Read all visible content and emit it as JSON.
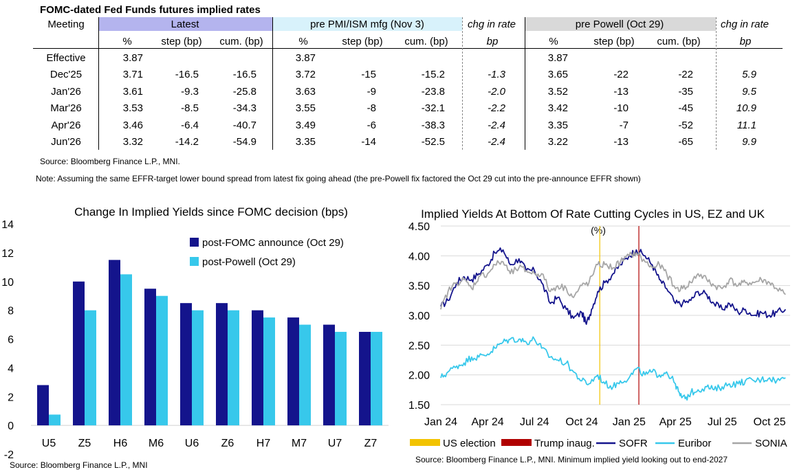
{
  "table": {
    "title": "FOMC-dated Fed Funds futures implied rates",
    "meeting_header": "Meeting",
    "groups": [
      {
        "label": "Latest",
        "sub": [
          "%",
          "step (bp)",
          "cum. (bp)"
        ]
      },
      {
        "label": "pre PMI/ISM mfg (Nov 3)",
        "sub": [
          "%",
          "step (bp)",
          "cum. (bp)"
        ]
      },
      {
        "label": "chg in rate",
        "sub": [
          "bp"
        ]
      },
      {
        "label": "pre Powell (Oct 29)",
        "sub": [
          "%",
          "step (bp)",
          "cum. (bp)"
        ]
      },
      {
        "label": "chg in rate",
        "sub": [
          "bp"
        ]
      }
    ],
    "rows": [
      [
        "Effective",
        "3.87",
        "",
        "",
        "3.87",
        "",
        "",
        "",
        "3.87",
        "",
        "",
        ""
      ],
      [
        "Dec'25",
        "3.71",
        "-16.5",
        "-16.5",
        "3.72",
        "-15",
        "-15.2",
        "-1.3",
        "3.65",
        "-22",
        "-22",
        "5.9"
      ],
      [
        "Jan'26",
        "3.61",
        "-9.3",
        "-25.8",
        "3.63",
        "-9",
        "-23.8",
        "-2.0",
        "3.52",
        "-13",
        "-35",
        "9.5"
      ],
      [
        "Mar'26",
        "3.53",
        "-8.5",
        "-34.3",
        "3.55",
        "-8",
        "-32.1",
        "-2.2",
        "3.42",
        "-10",
        "-45",
        "10.9"
      ],
      [
        "Apr'26",
        "3.46",
        "-6.4",
        "-40.7",
        "3.49",
        "-6",
        "-38.3",
        "-2.4",
        "3.35",
        "-7",
        "-52",
        "11.1"
      ],
      [
        "Jun'26",
        "3.32",
        "-14.2",
        "-54.9",
        "3.35",
        "-14",
        "-52.5",
        "-2.4",
        "3.22",
        "-13",
        "-65",
        "9.9"
      ]
    ],
    "source": "Source: Bloomberg Finance L.P., MNI.",
    "note": "Note: Assuming the same  EFFR-target lower bound spread from latest fix going ahead (the pre-Powell fix factored the Oct 29 cut into the pre-announce EFFR shown)",
    "colors": {
      "latest": "#b4b4ee",
      "pmi": "#d8f2fb",
      "powell": "#d9d9d9"
    }
  },
  "chart_data": [
    {
      "type": "bar",
      "title": "Change In Implied Yields since FOMC decision (bps)",
      "categories": [
        "U5",
        "Z5",
        "H6",
        "M6",
        "U6",
        "Z6",
        "H7",
        "M7",
        "U7",
        "Z7"
      ],
      "series": [
        {
          "name": "post-FOMC announce (Oct 29)",
          "color": "#14148c",
          "values": [
            2.8,
            10.0,
            11.5,
            9.5,
            8.5,
            8.5,
            8.0,
            7.5,
            7.0,
            6.5
          ]
        },
        {
          "name": "post-Powell (Oct 29)",
          "color": "#37c8eb",
          "values": [
            0.75,
            8.0,
            10.5,
            9.0,
            8.0,
            8.0,
            7.5,
            7.0,
            6.5,
            6.5
          ]
        }
      ],
      "ylim": [
        -2,
        14
      ],
      "yticks": [
        "-2",
        "0",
        "2",
        "4",
        "6",
        "8",
        "10",
        "12",
        "14"
      ],
      "legend": "top-right",
      "source": "Source: Bloomberg Finance L.P., MNI"
    },
    {
      "type": "line",
      "title": "Implied Yields At Bottom Of Rate Cutting Cycles in US, EZ and UK",
      "unit_label": "(%)",
      "xlim": [
        "2024-01-01",
        "2025-11-10"
      ],
      "xticks": [
        {
          "date": "2024-01-01",
          "label": "Jan 24"
        },
        {
          "date": "2024-04-01",
          "label": "Apr 24"
        },
        {
          "date": "2024-07-01",
          "label": "Jul 24"
        },
        {
          "date": "2024-10-01",
          "label": "Oct 24"
        },
        {
          "date": "2025-01-01",
          "label": "Jan 25"
        },
        {
          "date": "2025-04-01",
          "label": "Apr 25"
        },
        {
          "date": "2025-07-01",
          "label": "Jul 25"
        },
        {
          "date": "2025-10-01",
          "label": "Oct 25"
        }
      ],
      "ylim": [
        1.5,
        4.5
      ],
      "yticks": [
        "1.50",
        "2.00",
        "2.50",
        "3.00",
        "3.50",
        "4.00",
        "4.50"
      ],
      "grid": true,
      "events": [
        {
          "name": "US election",
          "date": "2024-11-05",
          "color": "#f2c300"
        },
        {
          "name": "Trump inaug.",
          "date": "2025-01-20",
          "color": "#b00000"
        }
      ],
      "series": [
        {
          "name": "SOFR",
          "color": "#14148c",
          "points": [
            [
              "2024-01-01",
              3.15
            ],
            [
              "2024-01-15",
              3.25
            ],
            [
              "2024-02-01",
              3.55
            ],
            [
              "2024-02-15",
              3.65
            ],
            [
              "2024-03-01",
              3.6
            ],
            [
              "2024-03-15",
              3.7
            ],
            [
              "2024-04-01",
              3.85
            ],
            [
              "2024-04-15",
              4.05
            ],
            [
              "2024-05-01",
              4.1
            ],
            [
              "2024-05-15",
              3.85
            ],
            [
              "2024-06-01",
              3.95
            ],
            [
              "2024-06-15",
              3.75
            ],
            [
              "2024-07-01",
              3.75
            ],
            [
              "2024-07-15",
              3.55
            ],
            [
              "2024-08-01",
              3.2
            ],
            [
              "2024-08-15",
              3.3
            ],
            [
              "2024-09-01",
              3.1
            ],
            [
              "2024-09-15",
              2.95
            ],
            [
              "2024-10-01",
              3.05
            ],
            [
              "2024-10-10",
              2.85
            ],
            [
              "2024-10-20",
              3.1
            ],
            [
              "2024-11-01",
              3.4
            ],
            [
              "2024-11-15",
              3.55
            ],
            [
              "2024-12-01",
              3.7
            ],
            [
              "2024-12-15",
              3.85
            ],
            [
              "2025-01-01",
              4.0
            ],
            [
              "2025-01-15",
              4.1
            ],
            [
              "2025-02-01",
              4.0
            ],
            [
              "2025-02-15",
              3.85
            ],
            [
              "2025-03-01",
              3.6
            ],
            [
              "2025-03-15",
              3.45
            ],
            [
              "2025-04-01",
              3.2
            ],
            [
              "2025-04-15",
              3.2
            ],
            [
              "2025-05-01",
              3.25
            ],
            [
              "2025-05-15",
              3.4
            ],
            [
              "2025-06-01",
              3.35
            ],
            [
              "2025-06-15",
              3.2
            ],
            [
              "2025-07-01",
              3.1
            ],
            [
              "2025-07-15",
              3.2
            ],
            [
              "2025-08-01",
              3.05
            ],
            [
              "2025-08-15",
              3.1
            ],
            [
              "2025-09-01",
              3.0
            ],
            [
              "2025-09-15",
              3.05
            ],
            [
              "2025-10-01",
              3.0
            ],
            [
              "2025-10-15",
              3.05
            ],
            [
              "2025-11-01",
              3.1
            ]
          ]
        },
        {
          "name": "Euribor",
          "color": "#37c8eb",
          "points": [
            [
              "2024-01-01",
              1.95
            ],
            [
              "2024-01-15",
              2.05
            ],
            [
              "2024-02-01",
              2.15
            ],
            [
              "2024-02-15",
              2.2
            ],
            [
              "2024-03-01",
              2.3
            ],
            [
              "2024-03-15",
              2.3
            ],
            [
              "2024-04-01",
              2.35
            ],
            [
              "2024-04-15",
              2.45
            ],
            [
              "2024-05-01",
              2.55
            ],
            [
              "2024-05-15",
              2.6
            ],
            [
              "2024-06-01",
              2.6
            ],
            [
              "2024-06-15",
              2.55
            ],
            [
              "2024-07-01",
              2.6
            ],
            [
              "2024-07-15",
              2.45
            ],
            [
              "2024-08-01",
              2.3
            ],
            [
              "2024-08-15",
              2.25
            ],
            [
              "2024-09-01",
              2.2
            ],
            [
              "2024-09-15",
              2.05
            ],
            [
              "2024-10-01",
              1.9
            ],
            [
              "2024-10-15",
              1.85
            ],
            [
              "2024-11-01",
              2.0
            ],
            [
              "2024-11-15",
              1.85
            ],
            [
              "2024-12-01",
              1.8
            ],
            [
              "2024-12-15",
              1.9
            ],
            [
              "2025-01-01",
              1.95
            ],
            [
              "2025-01-15",
              2.1
            ],
            [
              "2025-02-01",
              2.0
            ],
            [
              "2025-02-15",
              2.05
            ],
            [
              "2025-03-01",
              2.0
            ],
            [
              "2025-03-15",
              2.05
            ],
            [
              "2025-04-01",
              1.85
            ],
            [
              "2025-04-10",
              1.65
            ],
            [
              "2025-04-20",
              1.6
            ],
            [
              "2025-05-01",
              1.7
            ],
            [
              "2025-05-15",
              1.75
            ],
            [
              "2025-06-01",
              1.8
            ],
            [
              "2025-06-15",
              1.75
            ],
            [
              "2025-07-01",
              1.8
            ],
            [
              "2025-07-15",
              1.85
            ],
            [
              "2025-08-01",
              1.85
            ],
            [
              "2025-08-15",
              1.9
            ],
            [
              "2025-09-01",
              1.9
            ],
            [
              "2025-09-15",
              1.92
            ],
            [
              "2025-10-01",
              1.95
            ],
            [
              "2025-10-15",
              1.9
            ],
            [
              "2025-11-01",
              1.95
            ]
          ]
        },
        {
          "name": "SONIA",
          "color": "#a6a6a6",
          "points": [
            [
              "2024-01-01",
              3.1
            ],
            [
              "2024-01-15",
              3.4
            ],
            [
              "2024-02-01",
              3.55
            ],
            [
              "2024-02-15",
              3.6
            ],
            [
              "2024-03-01",
              3.45
            ],
            [
              "2024-03-15",
              3.65
            ],
            [
              "2024-04-01",
              3.7
            ],
            [
              "2024-04-15",
              3.85
            ],
            [
              "2024-05-01",
              3.9
            ],
            [
              "2024-05-15",
              3.7
            ],
            [
              "2024-06-01",
              3.8
            ],
            [
              "2024-06-15",
              3.75
            ],
            [
              "2024-07-01",
              3.7
            ],
            [
              "2024-07-15",
              3.7
            ],
            [
              "2024-08-01",
              3.4
            ],
            [
              "2024-08-15",
              3.5
            ],
            [
              "2024-09-01",
              3.45
            ],
            [
              "2024-09-15",
              3.3
            ],
            [
              "2024-10-01",
              3.5
            ],
            [
              "2024-10-15",
              3.55
            ],
            [
              "2024-11-01",
              3.85
            ],
            [
              "2024-11-15",
              3.85
            ],
            [
              "2024-12-01",
              3.8
            ],
            [
              "2024-12-15",
              3.9
            ],
            [
              "2025-01-01",
              4.0
            ],
            [
              "2025-01-15",
              4.05
            ],
            [
              "2025-02-01",
              3.9
            ],
            [
              "2025-02-15",
              3.8
            ],
            [
              "2025-03-01",
              3.85
            ],
            [
              "2025-03-15",
              3.7
            ],
            [
              "2025-04-01",
              3.45
            ],
            [
              "2025-04-15",
              3.45
            ],
            [
              "2025-05-01",
              3.55
            ],
            [
              "2025-05-15",
              3.7
            ],
            [
              "2025-06-01",
              3.6
            ],
            [
              "2025-06-15",
              3.5
            ],
            [
              "2025-07-01",
              3.45
            ],
            [
              "2025-07-15",
              3.6
            ],
            [
              "2025-08-01",
              3.5
            ],
            [
              "2025-08-15",
              3.55
            ],
            [
              "2025-09-01",
              3.55
            ],
            [
              "2025-09-15",
              3.6
            ],
            [
              "2025-10-01",
              3.55
            ],
            [
              "2025-10-15",
              3.45
            ],
            [
              "2025-11-01",
              3.35
            ]
          ]
        }
      ],
      "legend": "bottom",
      "source": "Source: Bloomberg Finance L.P., MNI. Minimum implied yield looking out to end-2027"
    }
  ]
}
